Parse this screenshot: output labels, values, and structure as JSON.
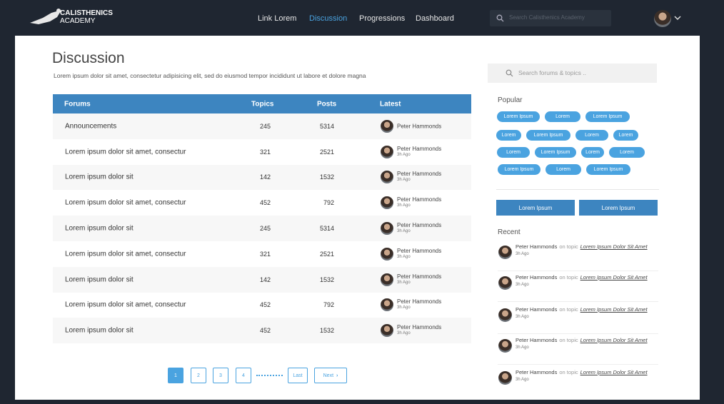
{
  "nav": {
    "logo": {
      "line1": "CALISTHENICS",
      "line2": "ACADEMY"
    },
    "links": [
      "Link Lorem",
      "Discussion",
      "Progressions",
      "Dashboard"
    ],
    "search_placeholder": "Search Calisthenics Academy"
  },
  "header": {
    "title": "Discussion",
    "subtitle": "Lorem ipsum dolor sit amet, consectetur adipisicing elit, sed do eiusmod tempor incididunt ut labore et dolore magna"
  },
  "table": {
    "columns": [
      "Forums",
      "Topics",
      "Posts",
      "Latest"
    ],
    "rows": [
      [
        "Announcements",
        245,
        5314,
        "Peter Hammonds",
        null
      ],
      [
        "Lorem ipsum dolor sit amet, consectur",
        321,
        2521,
        "Peter Hammonds",
        "3h Ago"
      ],
      [
        "Lorem ipsum dolor sit",
        142,
        1532,
        "Peter Hammonds",
        "3h Ago"
      ],
      [
        "Lorem ipsum dolor sit amet, consectur",
        452,
        792,
        "Peter Hammonds",
        "3h Ago"
      ],
      [
        "Lorem ipsum dolor sit",
        245,
        5314,
        "Peter Hammonds",
        "3h Ago"
      ],
      [
        "Lorem ipsum dolor sit amet, consectur",
        321,
        2521,
        "Peter Hammonds",
        "3h Ago"
      ],
      [
        "Lorem ipsum dolor sit",
        142,
        1532,
        "Peter Hammonds",
        "3h Ago"
      ],
      [
        "Lorem ipsum dolor sit amet, consectur",
        452,
        792,
        "Peter Hammonds",
        "3h Ago"
      ],
      [
        "Lorem ipsum dolor sit",
        452,
        1532,
        "Peter Hammonds",
        "3h Ago"
      ]
    ]
  },
  "pagination": {
    "pages": [
      "1",
      "2",
      "3",
      "4"
    ],
    "last": "Last",
    "next": "Next"
  },
  "sidebar": {
    "search_placeholder": "Search forums & topics ..",
    "popular_title": "Popular",
    "tags": [
      [
        "Lorem Ipsum",
        "Lorem",
        "Lorem Ipsum"
      ],
      [
        "Lorem",
        "Lorem Ipsum",
        "Lorem",
        "Lorem"
      ],
      [
        "Lorem",
        "Lorem Ipsum",
        "Lorem",
        "Lorem"
      ],
      [
        "Lorem Ipsum",
        "Lorem",
        "Lorem Ipsum"
      ]
    ],
    "buttons": [
      "Lorem Ipsum",
      "Lorem Ipsum"
    ],
    "recent_title": "Recent",
    "recent": [
      {
        "author": "Peter Hammonds",
        "connector": "on topic",
        "topic": "Lorem Ipsum Dolor Sit Amet",
        "time": "3h Ago"
      },
      {
        "author": "Peter Hammonds",
        "connector": "on topic",
        "topic": "Lorem Ipsum Dolor Sit Amet",
        "time": "3h Ago"
      },
      {
        "author": "Peter Hammonds",
        "connector": "on topic",
        "topic": "Lorem Ipsum Dolor Sit Amet",
        "time": "3h Ago"
      },
      {
        "author": "Peter Hammonds",
        "connector": "on topic",
        "topic": "Lorem Ipsum Dolor Sit Amet",
        "time": "3h Ago"
      },
      {
        "author": "Peter Hammonds",
        "connector": "on topic",
        "topic": "Lorem Ipsum Dolor Sit Amet",
        "time": "3h Ago"
      }
    ]
  }
}
